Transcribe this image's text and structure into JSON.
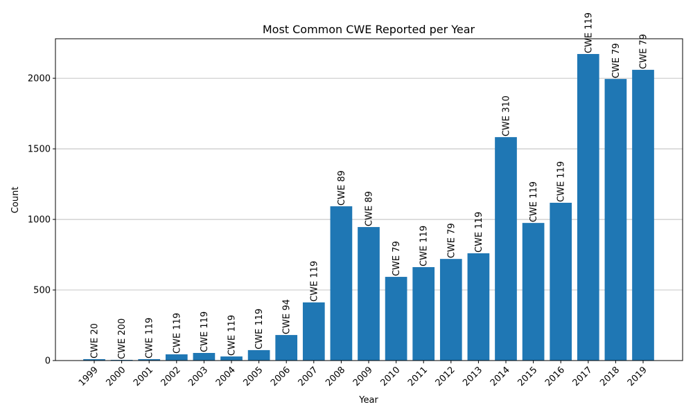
{
  "chart_data": {
    "type": "bar",
    "title": "Most Common CWE Reported per Year",
    "xlabel": "Year",
    "ylabel": "Count",
    "ylim": [
      0,
      2280
    ],
    "yticks": [
      0,
      500,
      1000,
      1500,
      2000
    ],
    "grid": "y",
    "bar_color": "#1f77b4",
    "categories": [
      "1999",
      "2000",
      "2001",
      "2002",
      "2003",
      "2004",
      "2005",
      "2006",
      "2007",
      "2008",
      "2009",
      "2010",
      "2011",
      "2012",
      "2013",
      "2014",
      "2015",
      "2016",
      "2017",
      "2018",
      "2019"
    ],
    "values": [
      10,
      5,
      10,
      44,
      54,
      29,
      74,
      181,
      412,
      1093,
      946,
      593,
      662,
      720,
      760,
      1583,
      975,
      1118,
      2172,
      1995,
      2060
    ],
    "bar_labels": [
      "CWE 20",
      "CWE 200",
      "CWE 119",
      "CWE 119",
      "CWE 119",
      "CWE 119",
      "CWE 119",
      "CWE 94",
      "CWE 119",
      "CWE 89",
      "CWE 89",
      "CWE 79",
      "CWE 119",
      "CWE 79",
      "CWE 119",
      "CWE 310",
      "CWE 119",
      "CWE 119",
      "CWE 119",
      "CWE 79",
      "CWE 79"
    ]
  }
}
